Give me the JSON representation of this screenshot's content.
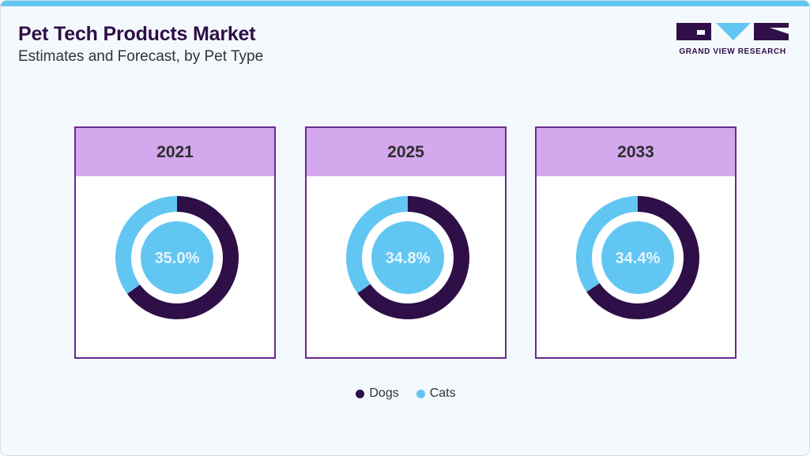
{
  "header": {
    "title": "Pet Tech Products Market",
    "subtitle": "Estimates and Forecast, by Pet Type"
  },
  "logo": {
    "text": "GRAND VIEW RESEARCH",
    "icon": "gvr-logo-icon"
  },
  "colors": {
    "dogs": "#2e0f47",
    "cats": "#62c6f2",
    "panel_border": "#6a2a8c",
    "panel_header": "#d4a8ec"
  },
  "chart_data": {
    "type": "pie",
    "donuts": [
      {
        "year": "2021",
        "center_label": "35.0%",
        "slices": [
          {
            "name": "Dogs",
            "value": 65.0
          },
          {
            "name": "Cats",
            "value": 35.0
          }
        ]
      },
      {
        "year": "2025",
        "center_label": "34.8%",
        "slices": [
          {
            "name": "Dogs",
            "value": 65.2
          },
          {
            "name": "Cats",
            "value": 34.8
          }
        ]
      },
      {
        "year": "2033",
        "center_label": "34.4%",
        "slices": [
          {
            "name": "Dogs",
            "value": 65.6
          },
          {
            "name": "Cats",
            "value": 34.4
          }
        ]
      }
    ],
    "legend": {
      "placement": "bottom",
      "entries": [
        "Dogs",
        "Cats"
      ]
    }
  }
}
